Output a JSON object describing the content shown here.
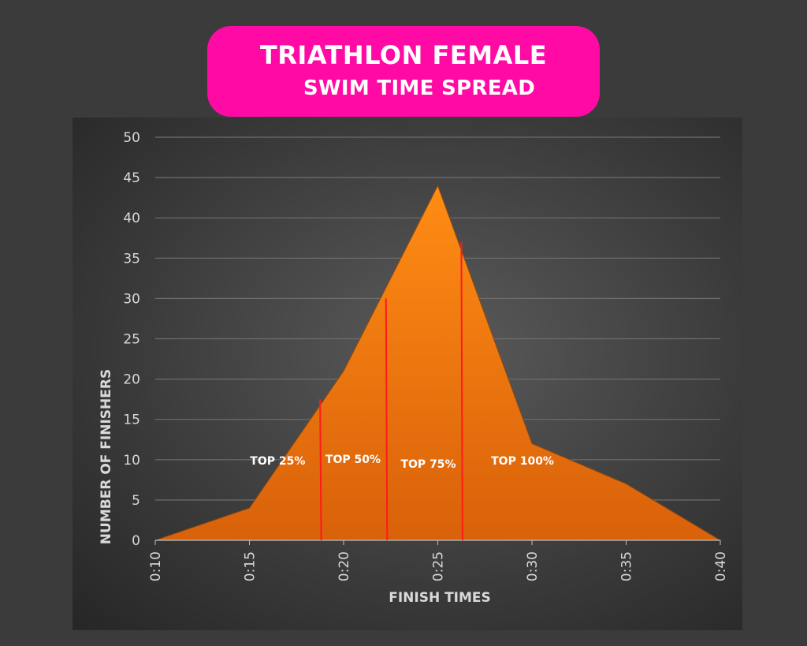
{
  "title": {
    "line1": "TRIATHLON FEMALE",
    "line2": "SWIM TIME SPREAD"
  },
  "colors": {
    "title_bg": "#ff0aa5",
    "area_fill_top": "#ff8c14",
    "area_fill_bottom": "#d9610a",
    "divider": "#ff1a1a",
    "gridline": "#6e6e6e"
  },
  "chart_data": {
    "type": "area",
    "title": "TRIATHLON FEMALE SWIM TIME SPREAD",
    "xlabel": "FINISH TIMES",
    "ylabel": "NUMBER OF FINISHERS",
    "x_ticks": [
      "0:10",
      "0:15",
      "0:20",
      "0:25",
      "0:30",
      "0:35",
      "0:40"
    ],
    "ylim": [
      0,
      50
    ],
    "y_ticks": [
      0,
      5,
      10,
      15,
      20,
      25,
      30,
      35,
      40,
      45,
      50
    ],
    "grid": true,
    "series": [
      {
        "x": [
          "0:10",
          "0:15",
          "0:20",
          "0:25",
          "0:30",
          "0:35",
          "0:40"
        ],
        "values": [
          0,
          4,
          21,
          44,
          12,
          7,
          0
        ]
      }
    ],
    "dividers": [
      {
        "x": "0:18.75",
        "value": 17.5
      },
      {
        "x": "0:22.25",
        "value": 30
      },
      {
        "x": "0:26.25",
        "value": 37
      }
    ],
    "region_labels": [
      "TOP 25%",
      "TOP 50%",
      "TOP 75%",
      "TOP 100%"
    ]
  }
}
